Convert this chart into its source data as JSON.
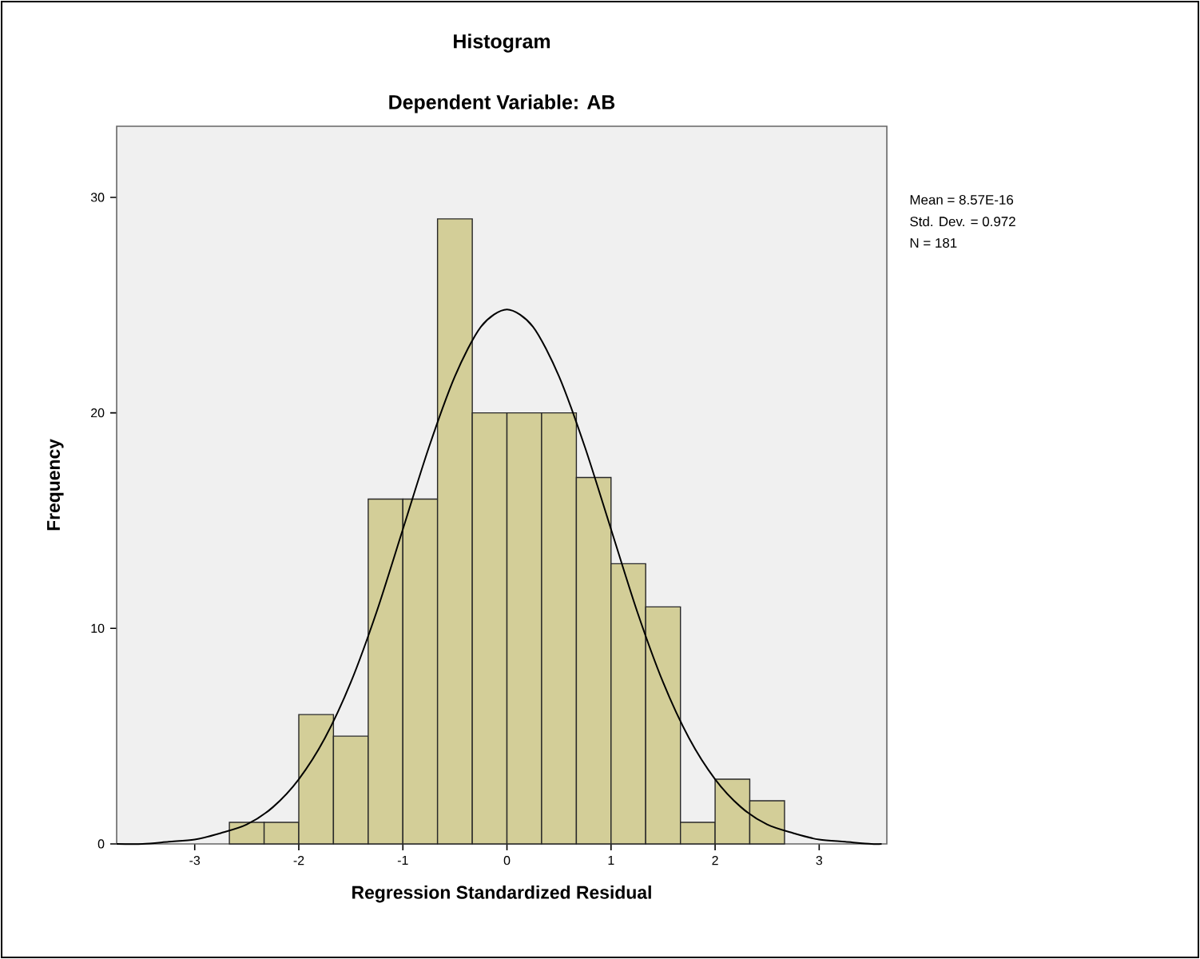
{
  "chart_data": {
    "type": "histogram",
    "title": "Histogram",
    "subtitle": "Dependent Variable: AB",
    "xlabel": "Regression Standardized Residual",
    "ylabel": "Frequency",
    "bins": [
      -2.667,
      -2.333,
      -2,
      -1.667,
      -1.333,
      -1,
      -0.667,
      -0.333,
      0,
      0.333,
      0.667,
      1,
      1.333,
      1.667,
      2,
      2.333,
      2.667
    ],
    "values": [
      1,
      1,
      6,
      5,
      16,
      16,
      29,
      20,
      20,
      20,
      17,
      13,
      11,
      1,
      3,
      2
    ],
    "color": "#d3ce98",
    "series": [
      {
        "type": "line",
        "color": "#000000",
        "x": [
          -3.75,
          -3.5,
          -3.25,
          -3,
          -2.75,
          -2.5,
          -2.25,
          -2,
          -1.75,
          -1.5,
          -1.25,
          -1,
          -0.75,
          -0.5,
          -0.25,
          0,
          0.25,
          0.5,
          0.75,
          1,
          1.25,
          1.5,
          1.75,
          2,
          2.25,
          2.5,
          2.75,
          3,
          3.25,
          3.5,
          3.6
        ],
        "values": [
          0,
          0,
          0.1,
          0.2,
          0.5,
          0.9,
          1.7,
          3,
          4.9,
          7.5,
          10.8,
          14.6,
          18.4,
          21.7,
          24,
          24.8,
          24,
          21.7,
          18.4,
          14.6,
          10.8,
          7.5,
          4.9,
          3,
          1.7,
          0.9,
          0.5,
          0.2,
          0.1,
          0,
          0
        ]
      }
    ],
    "marker": "none",
    "line_style": "solid",
    "xlim": [
      -3.75,
      3.65
    ],
    "ylim": [
      0,
      33.3
    ],
    "xticks": [
      -3,
      -2,
      -1,
      0,
      1,
      2,
      3
    ],
    "yticks": [
      0,
      10,
      20,
      30
    ],
    "annotations": [
      "Mean = 8.57E-16",
      "Std. Dev. = 0.972",
      "N = 181"
    ]
  }
}
